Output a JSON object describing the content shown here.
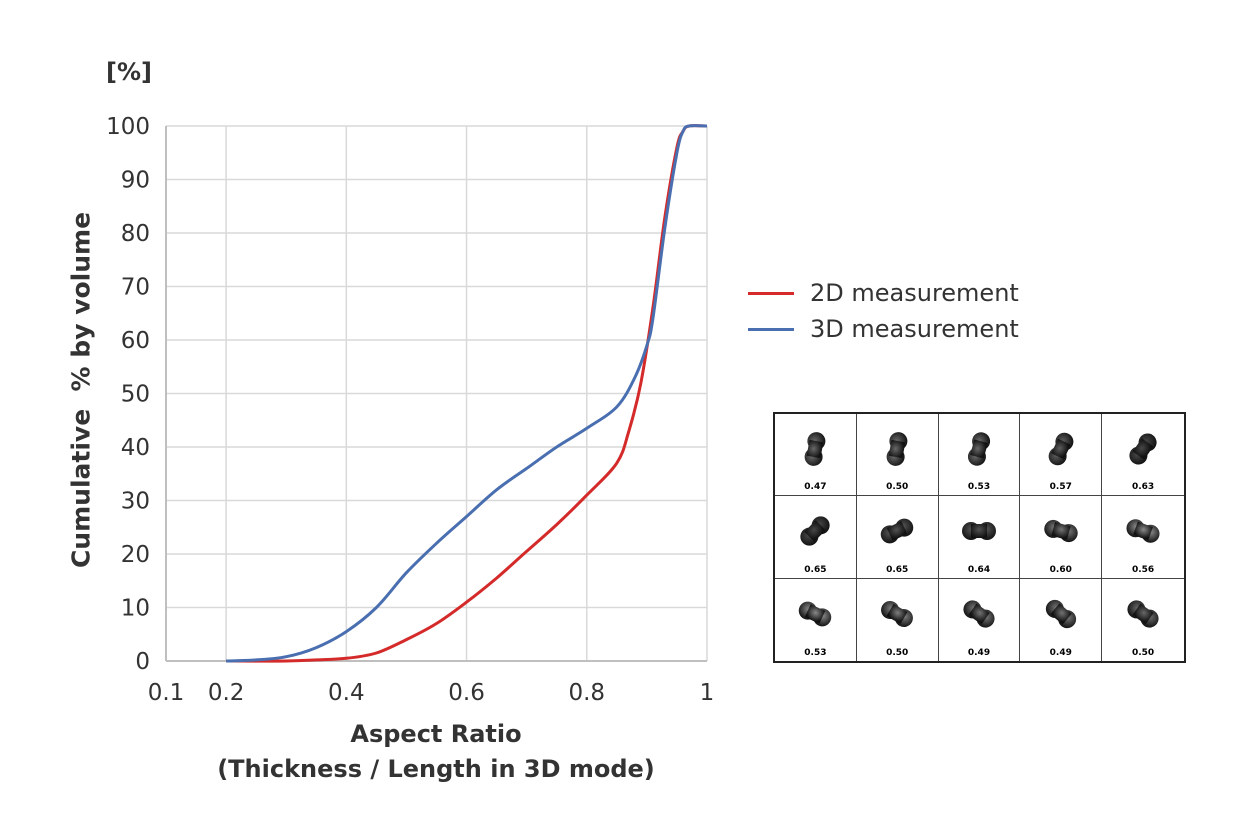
{
  "chart_data": {
    "type": "line",
    "unit_label": "[%]",
    "ylabel": "Cumulative  % by volume",
    "xlabel_line1": "Aspect Ratio",
    "xlabel_line2": "(Thickness / Length in 3D mode)",
    "xlim": [
      0.1,
      1.0
    ],
    "ylim": [
      0,
      100
    ],
    "x_ticks": [
      "0.1",
      "0.2",
      "0.4",
      "0.6",
      "0.8",
      "1"
    ],
    "x_tick_values": [
      0.1,
      0.2,
      0.4,
      0.6,
      0.8,
      1.0
    ],
    "y_ticks": [
      "0",
      "10",
      "20",
      "30",
      "40",
      "50",
      "60",
      "70",
      "80",
      "90",
      "100"
    ],
    "grid": true,
    "legend_position": "right",
    "series": [
      {
        "name": "2D measurement",
        "color": "#d42a2a",
        "x": [
          0.2,
          0.3,
          0.35,
          0.4,
          0.45,
          0.5,
          0.55,
          0.6,
          0.65,
          0.7,
          0.75,
          0.8,
          0.85,
          0.87,
          0.89,
          0.91,
          0.93,
          0.95,
          0.96,
          0.97,
          1.0
        ],
        "y": [
          0,
          0,
          0.2,
          0.5,
          1.5,
          4,
          7,
          11,
          15.5,
          20.5,
          25.5,
          31,
          37,
          43,
          52,
          66,
          83,
          96,
          99,
          100,
          100
        ]
      },
      {
        "name": "3D measurement",
        "color": "#4a6fb0",
        "x": [
          0.2,
          0.25,
          0.3,
          0.35,
          0.4,
          0.45,
          0.5,
          0.55,
          0.6,
          0.65,
          0.7,
          0.75,
          0.8,
          0.85,
          0.88,
          0.9,
          0.91,
          0.93,
          0.95,
          0.96,
          0.97,
          1.0
        ],
        "y": [
          0,
          0.2,
          0.8,
          2.5,
          5.5,
          10,
          16.5,
          22,
          27,
          32,
          36,
          40,
          43.5,
          47.5,
          53,
          59,
          64,
          81,
          95,
          99,
          100,
          100
        ]
      }
    ]
  },
  "thumbnails": {
    "rows": [
      [
        {
          "value": "0.47",
          "angle": 80,
          "darkness": 0.2
        },
        {
          "value": "0.50",
          "angle": 80,
          "darkness": 0.2
        },
        {
          "value": "0.53",
          "angle": 75,
          "darkness": 0.2
        },
        {
          "value": "0.57",
          "angle": 65,
          "darkness": 0.15
        },
        {
          "value": "0.63",
          "angle": 55,
          "darkness": 0.05
        }
      ],
      [
        {
          "value": "0.65",
          "angle": 45,
          "darkness": 0.05
        },
        {
          "value": "0.65",
          "angle": 25,
          "darkness": 0.1
        },
        {
          "value": "0.64",
          "angle": 0,
          "darkness": 0.1
        },
        {
          "value": "0.60",
          "angle": -15,
          "darkness": 0.25
        },
        {
          "value": "0.56",
          "angle": -20,
          "darkness": 0.35
        }
      ],
      [
        {
          "value": "0.53",
          "angle": -25,
          "darkness": 0.35
        },
        {
          "value": "0.50",
          "angle": -30,
          "darkness": 0.3
        },
        {
          "value": "0.49",
          "angle": -35,
          "darkness": 0.25
        },
        {
          "value": "0.49",
          "angle": -40,
          "darkness": 0.25
        },
        {
          "value": "0.50",
          "angle": -35,
          "darkness": 0.2
        }
      ]
    ]
  }
}
